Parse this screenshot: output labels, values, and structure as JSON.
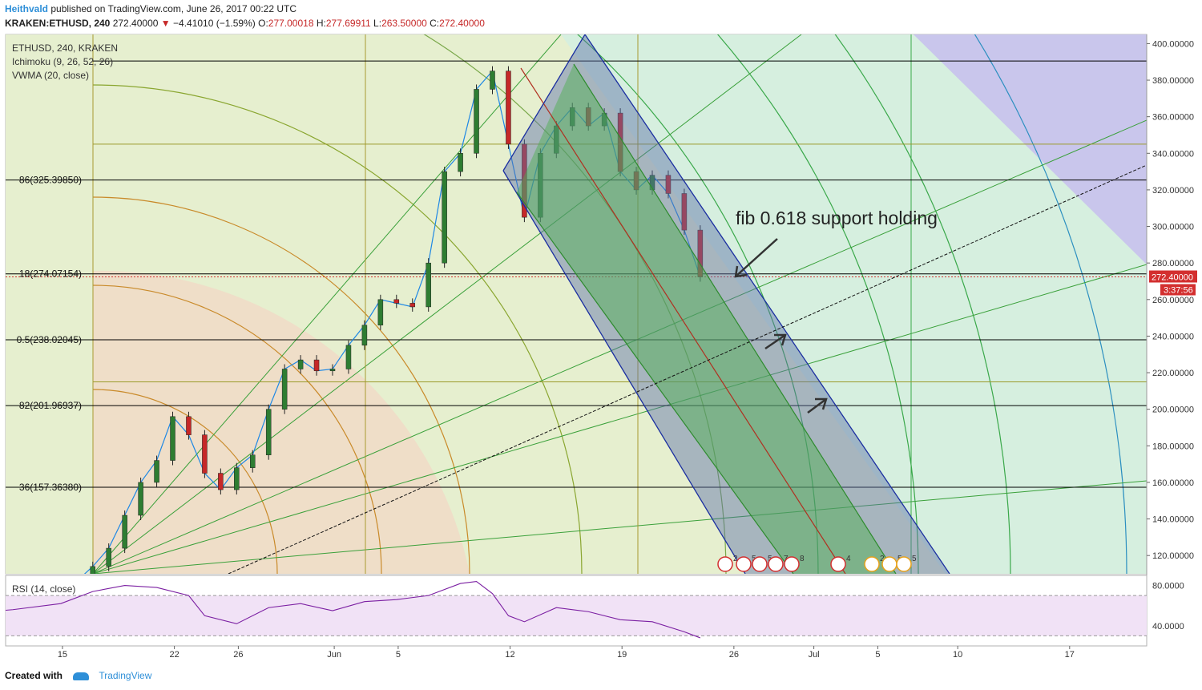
{
  "header": {
    "author": "Heithvald",
    "published": "published on TradingView.com, June 26, 2017 00:22 UTC",
    "symbol": "KRAKEN:ETHUSD, 240",
    "last": "272.40000",
    "change": "−4.41010 (−1.59%)",
    "o_label": "O:",
    "o": "277.00018",
    "h_label": "H:",
    "h": "277.69911",
    "l_label": "L:",
    "l": "263.50000",
    "c_label": "C:",
    "c": "272.40000"
  },
  "legend": {
    "line1": "ETHUSD, 240, KRAKEN",
    "line2": "Ichimoku (9, 26, 52, 26)",
    "line3": "VWMA (20, close)"
  },
  "annotation": {
    "text": "fib 0.618 support holding"
  },
  "rsi": {
    "label": "RSI (14, close)",
    "ticks": [
      "80.0000",
      "40.0000"
    ]
  },
  "footer": {
    "created": "Created with",
    "brand": "TradingView"
  },
  "colors": {
    "up": "#2e7d32",
    "down": "#c62828",
    "vwma": "#1e88e5",
    "channel": "#1a2ea0",
    "price_tag": "#d32f2f",
    "rsi_line": "#7b1fa2"
  },
  "chart_data": {
    "type": "line",
    "title": "ETHUSD, 240, KRAKEN",
    "y_axis": {
      "ylim": [
        110,
        405
      ],
      "ticks": [
        120,
        140,
        160,
        180,
        200,
        220,
        240,
        260,
        280,
        300,
        320,
        340,
        360,
        380,
        400
      ],
      "tick_format": "0.00000"
    },
    "x_axis": {
      "ticks": [
        "15",
        "22",
        "26",
        "Jun",
        "5",
        "12",
        "19",
        "26",
        "Jul",
        "5",
        "10",
        "17"
      ]
    },
    "price_tag": "272.40000",
    "countdown": "3:37:56",
    "fib_levels": [
      {
        "label": "86(325.39850)",
        "value": 325.3985
      },
      {
        "label": "18(274.07154)",
        "value": 274.07154
      },
      {
        "label": "0.5(238.02045)",
        "value": 238.02045
      },
      {
        "label": "82(201.96937)",
        "value": 201.96937
      },
      {
        "label": "36(157.36380)",
        "value": 157.3638
      }
    ],
    "extra_levels": [
      390.5,
      345,
      215
    ],
    "price_series": [
      {
        "day": "May 12",
        "value": 75
      },
      {
        "day": "May 15",
        "value": 92
      },
      {
        "day": "May 17",
        "value": 98
      },
      {
        "day": "May 19",
        "value": 114
      },
      {
        "day": "May 20",
        "value": 124
      },
      {
        "day": "May 21",
        "value": 142
      },
      {
        "day": "May 22",
        "value": 160
      },
      {
        "day": "May 23",
        "value": 172
      },
      {
        "day": "May 24",
        "value": 196
      },
      {
        "day": "May 25",
        "value": 186
      },
      {
        "day": "May 26",
        "value": 165
      },
      {
        "day": "May 27",
        "value": 156
      },
      {
        "day": "May 28",
        "value": 168
      },
      {
        "day": "May 29",
        "value": 175
      },
      {
        "day": "May 30",
        "value": 200
      },
      {
        "day": "May 31",
        "value": 222
      },
      {
        "day": "Jun 1",
        "value": 227
      },
      {
        "day": "Jun 2",
        "value": 221
      },
      {
        "day": "Jun 3",
        "value": 222
      },
      {
        "day": "Jun 4",
        "value": 235
      },
      {
        "day": "Jun 5",
        "value": 246
      },
      {
        "day": "Jun 6",
        "value": 260
      },
      {
        "day": "Jun 7",
        "value": 258
      },
      {
        "day": "Jun 8",
        "value": 256
      },
      {
        "day": "Jun 9",
        "value": 280
      },
      {
        "day": "Jun 10",
        "value": 330
      },
      {
        "day": "Jun 11",
        "value": 340
      },
      {
        "day": "Jun 12",
        "value": 375
      },
      {
        "day": "Jun 13",
        "value": 385
      },
      {
        "day": "Jun 14",
        "value": 345
      },
      {
        "day": "Jun 15",
        "value": 305
      },
      {
        "day": "Jun 16",
        "value": 340
      },
      {
        "day": "Jun 17",
        "value": 355
      },
      {
        "day": "Jun 18",
        "value": 365
      },
      {
        "day": "Jun 19",
        "value": 355
      },
      {
        "day": "Jun 20",
        "value": 362
      },
      {
        "day": "Jun 21",
        "value": 330
      },
      {
        "day": "Jun 22",
        "value": 320
      },
      {
        "day": "Jun 23",
        "value": 328
      },
      {
        "day": "Jun 24",
        "value": 318
      },
      {
        "day": "Jun 25",
        "value": 298
      },
      {
        "day": "Jun 26",
        "value": 272.4
      }
    ],
    "rsi_series": [
      {
        "day": "May 11",
        "value": 52
      },
      {
        "day": "May 14",
        "value": 56
      },
      {
        "day": "May 17",
        "value": 62
      },
      {
        "day": "May 19",
        "value": 74
      },
      {
        "day": "May 21",
        "value": 80
      },
      {
        "day": "May 23",
        "value": 78
      },
      {
        "day": "May 25",
        "value": 70
      },
      {
        "day": "May 26",
        "value": 50
      },
      {
        "day": "May 28",
        "value": 42
      },
      {
        "day": "May 30",
        "value": 58
      },
      {
        "day": "Jun 1",
        "value": 62
      },
      {
        "day": "Jun 3",
        "value": 55
      },
      {
        "day": "Jun 5",
        "value": 64
      },
      {
        "day": "Jun 7",
        "value": 66
      },
      {
        "day": "Jun 9",
        "value": 70
      },
      {
        "day": "Jun 11",
        "value": 82
      },
      {
        "day": "Jun 12",
        "value": 84
      },
      {
        "day": "Jun 13",
        "value": 72
      },
      {
        "day": "Jun 14",
        "value": 50
      },
      {
        "day": "Jun 15",
        "value": 44
      },
      {
        "day": "Jun 17",
        "value": 58
      },
      {
        "day": "Jun 19",
        "value": 54
      },
      {
        "day": "Jun 21",
        "value": 46
      },
      {
        "day": "Jun 23",
        "value": 44
      },
      {
        "day": "Jun 25",
        "value": 34
      },
      {
        "day": "Jun 26",
        "value": 28
      }
    ],
    "rsi_ylim": [
      20,
      90
    ],
    "rsi_bands": [
      70,
      30
    ],
    "event_flags": [
      "2",
      "5",
      "5",
      "7",
      "8",
      "4",
      "2",
      "5",
      "5"
    ]
  }
}
